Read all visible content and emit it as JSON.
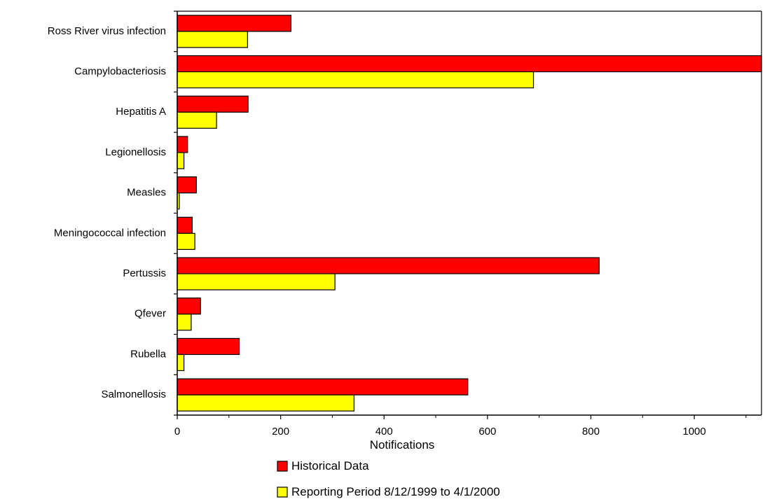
{
  "chart_data": {
    "type": "bar",
    "orientation": "horizontal",
    "categories": [
      "Ross River virus infection",
      "Campylobacteriosis",
      "Hepatitis A",
      "Legionellosis",
      "Measles",
      "Meningococcal infection",
      "Pertussis",
      "Qfever",
      "Rubella",
      "Salmonellosis"
    ],
    "series": [
      {
        "name": "Historical Data",
        "color": "#ff0000",
        "values": [
          220,
          1130,
          137,
          20,
          37,
          29,
          816,
          45,
          120,
          562
        ]
      },
      {
        "name": "Reporting Period 8/12/1999 to 4/1/2000",
        "color": "#ffff00",
        "values": [
          136,
          689,
          76,
          13,
          4,
          34,
          305,
          27,
          13,
          342
        ]
      }
    ],
    "xlabel": "Notifications",
    "ylabel": "",
    "title": "",
    "xlim": [
      0,
      1130
    ],
    "xticks": [
      0,
      200,
      400,
      600,
      800,
      1000
    ],
    "xtick_labels": [
      "0",
      "200",
      "400",
      "600",
      "800",
      "1000"
    ],
    "grid": false,
    "legend_position": "bottom"
  }
}
